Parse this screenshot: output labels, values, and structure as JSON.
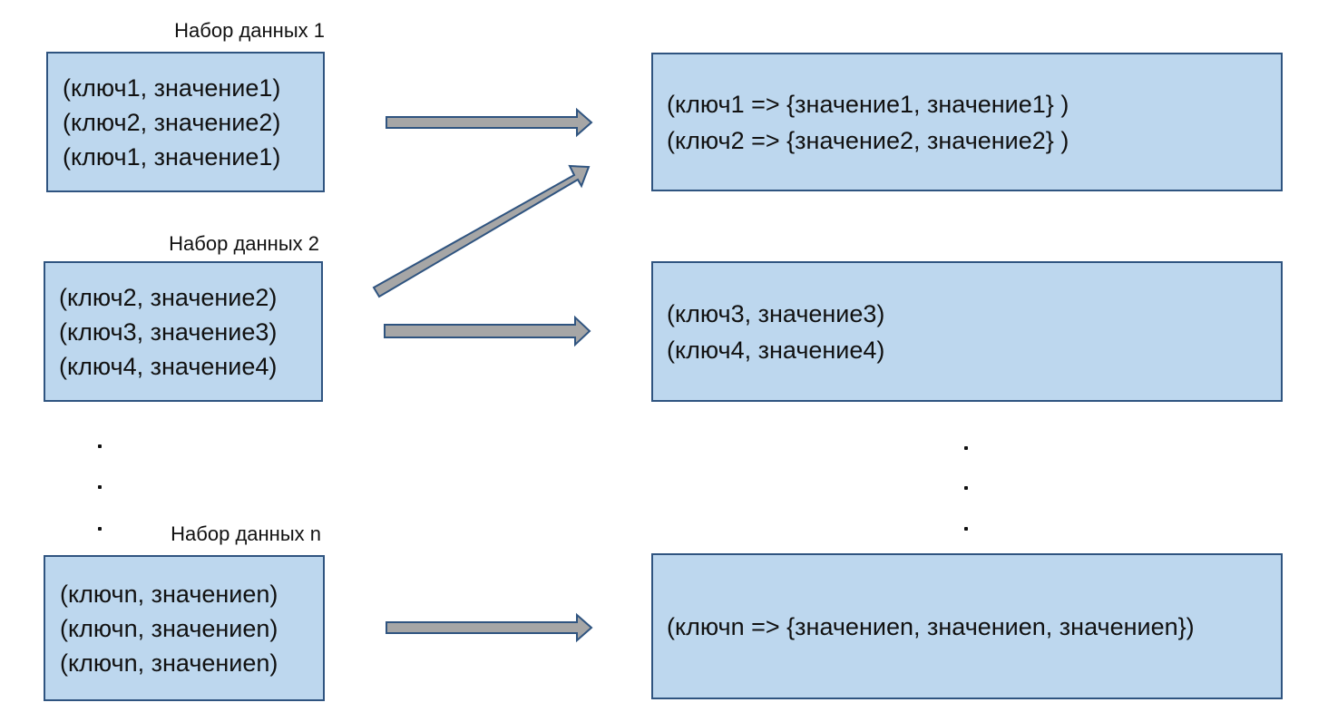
{
  "datasets": [
    {
      "label": "Набор данных 1",
      "lines": [
        "(ключ1, значение1)",
        "(ключ2, значение2)",
        "(ключ1, значение1)"
      ]
    },
    {
      "label": "Набор данных 2",
      "lines": [
        "(ключ2, значение2)",
        "(ключ3, значение3)",
        "(ключ4, значение4)"
      ]
    },
    {
      "label": "Набор данных n",
      "lines": [
        "(ключn, значениеn)",
        "(ключn, значениеn)",
        "(ключn, значениеn)"
      ]
    }
  ],
  "results": [
    {
      "lines": [
        "(ключ1 => {значение1, значение1} )",
        "(ключ2 => {значение2, значение2} )"
      ]
    },
    {
      "lines": [
        "(ключ3, значение3)",
        "(ключ4, значение4)"
      ]
    },
    {
      "lines": [
        "(ключn => {значениеn, значениеn, значениеn})"
      ]
    }
  ],
  "colors": {
    "box_fill": "#bdd7ee",
    "box_border": "#2f5480",
    "arrow_fill": "#a6a6a6",
    "arrow_border": "#2f5480"
  }
}
